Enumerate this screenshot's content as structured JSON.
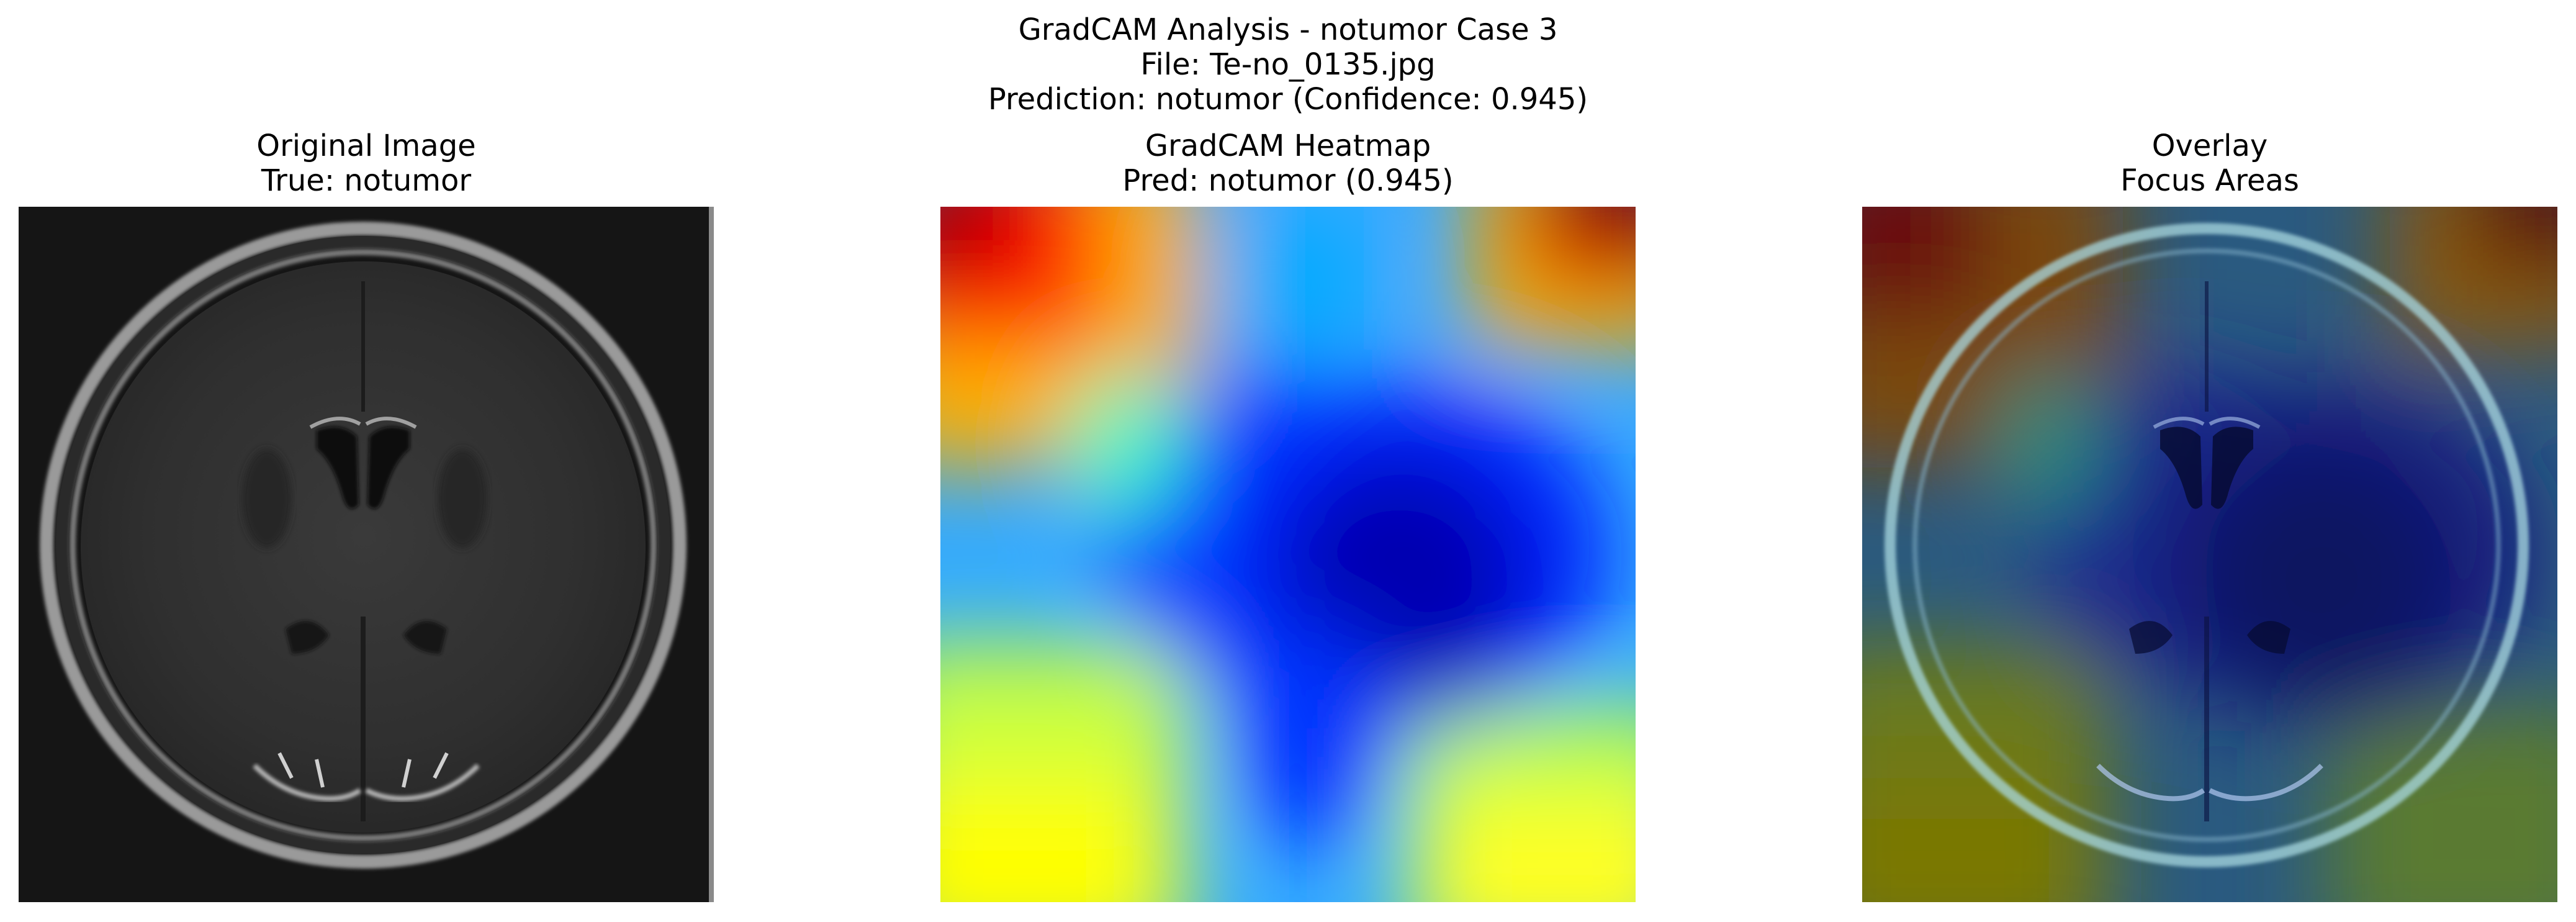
{
  "figure": {
    "title_lines": [
      "GradCAM Analysis - notumor Case 3",
      "File: Te-no_0135.jpg",
      "Prediction: notumor (Confidence: 0.945)"
    ]
  },
  "panels": [
    {
      "title": "Original Image",
      "subtitle": "True: notumor"
    },
    {
      "title": "GradCAM Heatmap",
      "subtitle": "Pred: notumor (0.945)"
    },
    {
      "title": "Overlay",
      "subtitle": "Focus Areas"
    }
  ],
  "colors": {
    "mri_background": "#151515",
    "heat_low": "#00008f",
    "heat_mid": "#00ffff",
    "heat_high": "#800000"
  }
}
